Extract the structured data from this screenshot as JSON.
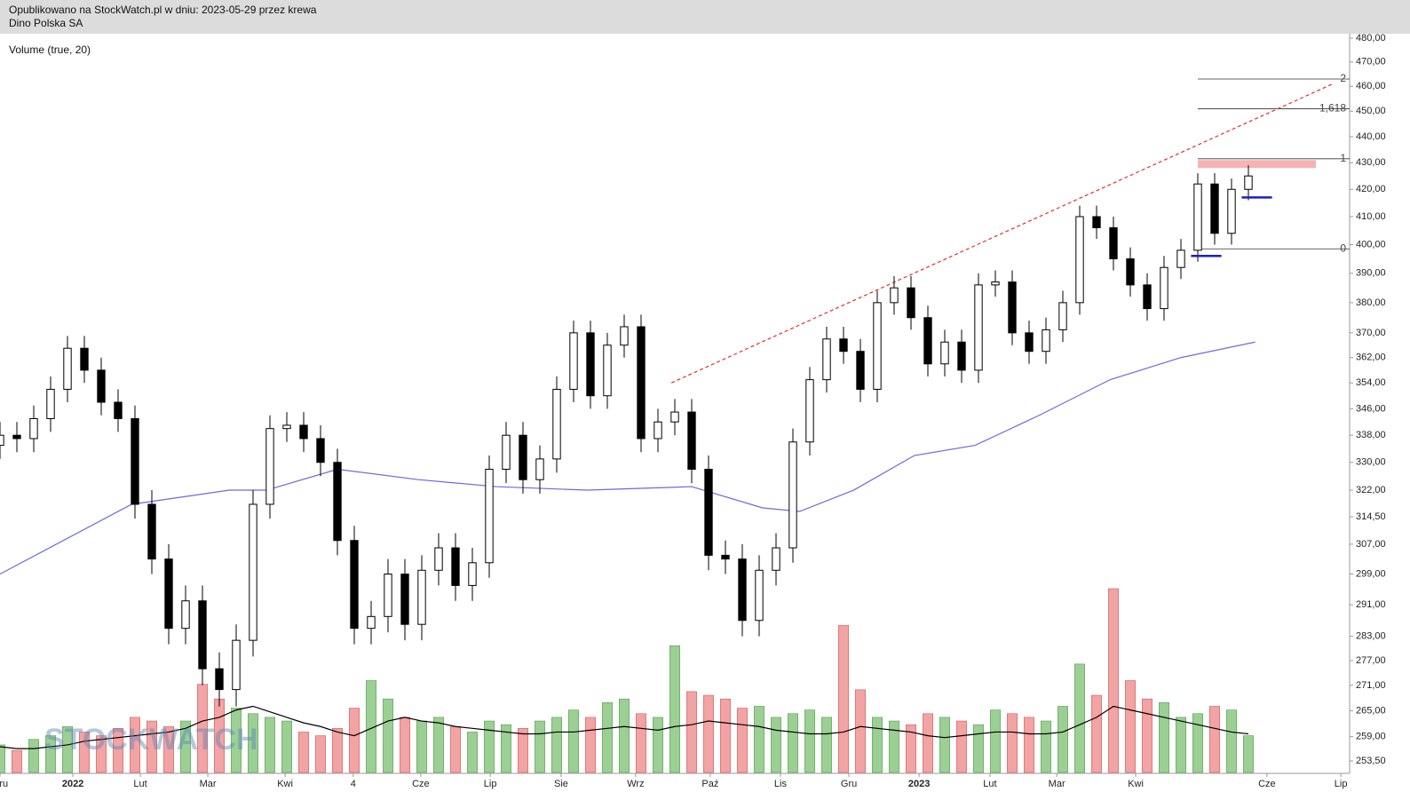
{
  "chart_data": {
    "type": "candlestick",
    "published": "Opublikowano na StockWatch.pl w dniu: 2023-05-29 przez krewa",
    "title": "Dino Polska SA",
    "indicator_label": "Volume (true, 20)",
    "watermark": "STOCKWATCH",
    "log": true,
    "up_color": "#ffffff",
    "down_color": "#000000",
    "x": [
      0,
      5,
      10,
      15,
      20,
      25,
      30,
      35,
      40,
      45,
      50,
      55,
      60,
      65,
      70,
      75,
      80,
      85,
      90,
      95,
      100,
      105,
      110,
      115,
      120,
      125,
      130,
      135,
      140,
      145,
      150,
      155,
      160,
      165,
      170,
      175,
      180,
      185,
      190,
      195,
      200,
      205,
      210,
      215,
      220,
      225,
      230,
      235,
      240,
      245,
      250,
      255,
      260,
      265,
      270,
      275,
      280,
      285,
      290,
      295,
      300,
      305,
      310,
      315,
      320,
      325,
      330,
      335,
      340,
      345,
      350,
      355,
      360,
      365,
      370
    ],
    "open": [
      335,
      338,
      337,
      343,
      352,
      365,
      358,
      348,
      343,
      318,
      303,
      285,
      292,
      275,
      270,
      282,
      318,
      340,
      341,
      337,
      330,
      308,
      285,
      288,
      299,
      286,
      300,
      306,
      296,
      302,
      328,
      338,
      325,
      331,
      352,
      370,
      350,
      366,
      372,
      337,
      342,
      345,
      328,
      304,
      303,
      287,
      300,
      306,
      336,
      355,
      368,
      364,
      352,
      380,
      385,
      375,
      360,
      367,
      358,
      386,
      387,
      370,
      364,
      371,
      380,
      410,
      406,
      395,
      386,
      378,
      392,
      398,
      422,
      404,
      420
    ],
    "high": [
      342,
      342,
      347,
      356,
      369,
      369,
      362,
      352,
      347,
      322,
      307,
      296,
      296,
      279,
      286,
      322,
      344,
      345,
      345,
      341,
      334,
      312,
      292,
      303,
      303,
      304,
      310,
      310,
      306,
      332,
      342,
      342,
      335,
      356,
      374,
      374,
      370,
      376,
      376,
      346,
      349,
      349,
      332,
      308,
      307,
      304,
      310,
      340,
      359,
      372,
      372,
      368,
      384,
      389,
      389,
      379,
      371,
      371,
      390,
      391,
      391,
      374,
      375,
      384,
      414,
      414,
      410,
      399,
      390,
      396,
      402,
      426,
      426,
      424,
      429
    ],
    "low": [
      331,
      333,
      333,
      339,
      348,
      354,
      344,
      339,
      314,
      299,
      281,
      281,
      271,
      266,
      266,
      278,
      314,
      336,
      333,
      326,
      304,
      281,
      281,
      284,
      282,
      282,
      296,
      292,
      292,
      298,
      324,
      321,
      321,
      327,
      348,
      346,
      346,
      362,
      333,
      333,
      338,
      324,
      300,
      299,
      283,
      283,
      296,
      302,
      332,
      351,
      360,
      348,
      348,
      376,
      371,
      356,
      356,
      354,
      354,
      382,
      366,
      360,
      360,
      367,
      376,
      402,
      391,
      382,
      374,
      374,
      388,
      394,
      400,
      400,
      416
    ],
    "close": [
      338,
      337,
      343,
      352,
      365,
      358,
      348,
      343,
      318,
      303,
      285,
      292,
      275,
      270,
      282,
      318,
      340,
      341,
      337,
      330,
      308,
      285,
      288,
      299,
      286,
      300,
      306,
      296,
      302,
      328,
      338,
      325,
      331,
      352,
      370,
      350,
      366,
      372,
      337,
      342,
      345,
      328,
      304,
      303,
      287,
      300,
      306,
      336,
      355,
      368,
      364,
      352,
      380,
      385,
      375,
      360,
      367,
      358,
      386,
      387,
      370,
      364,
      371,
      380,
      410,
      406,
      395,
      386,
      378,
      392,
      398,
      422,
      404,
      420,
      425
    ],
    "xlim": [
      0,
      400
    ],
    "xticks": [
      {
        "value": 0,
        "label": "Gru"
      },
      {
        "value": 21.6,
        "label": "2022"
      },
      {
        "value": 41.6,
        "label": "Lut"
      },
      {
        "value": 61.6,
        "label": "Mar"
      },
      {
        "value": 84.5,
        "label": "Kwi"
      },
      {
        "value": 104.7,
        "label": "4"
      },
      {
        "value": 124.7,
        "label": "Cze"
      },
      {
        "value": 145.3,
        "label": "Lip"
      },
      {
        "value": 166.3,
        "label": "Sie"
      },
      {
        "value": 188.4,
        "label": "Wrz"
      },
      {
        "value": 210.5,
        "label": "Paź"
      },
      {
        "value": 231.3,
        "label": "Lis"
      },
      {
        "value": 251.6,
        "label": "Gru"
      },
      {
        "value": 272.4,
        "label": "2023"
      },
      {
        "value": 293.4,
        "label": "Lut"
      },
      {
        "value": 313.2,
        "label": "Mar"
      },
      {
        "value": 336.6,
        "label": "Kwi"
      },
      {
        "value": 375.5,
        "label": "Cze"
      },
      {
        "value": 397.4,
        "label": "Lip"
      }
    ],
    "ylim": [
      253.5,
      480
    ],
    "yticks": [
      {
        "value": 480,
        "label": "480,00"
      },
      {
        "value": 470,
        "label": "470,00"
      },
      {
        "value": 460,
        "label": "460,00"
      },
      {
        "value": 450,
        "label": "450,00"
      },
      {
        "value": 440,
        "label": "440,00"
      },
      {
        "value": 430,
        "label": "430,00"
      },
      {
        "value": 420,
        "label": "420,00"
      },
      {
        "value": 410,
        "label": "410,00"
      },
      {
        "value": 400,
        "label": "400,00"
      },
      {
        "value": 390,
        "label": "390,00"
      },
      {
        "value": 380,
        "label": "380,00"
      },
      {
        "value": 370,
        "label": "370,00"
      },
      {
        "value": 362,
        "label": "362,00"
      },
      {
        "value": 354,
        "label": "354,00"
      },
      {
        "value": 346,
        "label": "346,00"
      },
      {
        "value": 338,
        "label": "338,00"
      },
      {
        "value": 330,
        "label": "330,00"
      },
      {
        "value": 322,
        "label": "322,00"
      },
      {
        "value": 314.5,
        "label": "314,50"
      },
      {
        "value": 307,
        "label": "307,00"
      },
      {
        "value": 299,
        "label": "299,00"
      },
      {
        "value": 291,
        "label": "291,00"
      },
      {
        "value": 283,
        "label": "283,00"
      },
      {
        "value": 277,
        "label": "277,00"
      },
      {
        "value": 271,
        "label": "271,00"
      },
      {
        "value": 265,
        "label": "265,00"
      },
      {
        "value": 259,
        "label": "259,00"
      },
      {
        "value": 253.5,
        "label": "253,50"
      }
    ],
    "moving_average": {
      "color": "#6a6adf",
      "x": [
        0,
        39,
        68,
        79,
        100,
        124,
        147,
        174,
        205,
        226,
        237,
        253,
        271,
        289,
        308,
        329,
        350,
        372
      ],
      "values": [
        299,
        318,
        322,
        322,
        328,
        325,
        323,
        322,
        323,
        317,
        316,
        322,
        332,
        335,
        344,
        355,
        362,
        367
      ]
    },
    "volume": {
      "up_color": "#9ccf94",
      "down_color": "#f2a3a3",
      "ylim": [
        0,
        100
      ],
      "values": [
        15,
        12,
        18,
        20,
        25,
        22,
        20,
        24,
        30,
        28,
        25,
        28,
        48,
        40,
        35,
        32,
        30,
        28,
        22,
        20,
        24,
        35,
        50,
        40,
        30,
        28,
        30,
        25,
        22,
        28,
        26,
        24,
        28,
        30,
        34,
        30,
        38,
        40,
        32,
        30,
        69,
        44,
        42,
        40,
        35,
        36,
        30,
        32,
        34,
        30,
        80,
        45,
        30,
        28,
        26,
        32,
        30,
        28,
        26,
        34,
        32,
        30,
        28,
        36,
        59,
        42,
        100,
        50,
        40,
        38,
        30,
        32,
        36,
        34,
        20
      ],
      "ma_color": "#000000",
      "ma": [
        14,
        13,
        13,
        14,
        15,
        17,
        18,
        19,
        20,
        21,
        22,
        24,
        28,
        30,
        34,
        36,
        33,
        30,
        27,
        25,
        22,
        20,
        24,
        28,
        30,
        28,
        27,
        25,
        24,
        23,
        22,
        21,
        21,
        22,
        22,
        23,
        24,
        25,
        24,
        23,
        25,
        26,
        28,
        27,
        26,
        25,
        23,
        22,
        21,
        21,
        22,
        25,
        24,
        23,
        22,
        20,
        19,
        20,
        21,
        22,
        22,
        21,
        21,
        22,
        26,
        30,
        36,
        34,
        32,
        30,
        28,
        26,
        24,
        22,
        21
      ]
    },
    "fib": {
      "x": [
        355,
        400
      ],
      "color": "#333333",
      "levels": [
        {
          "value": 463,
          "label": "2"
        },
        {
          "value": 451,
          "label": "1,618"
        },
        {
          "value": 431.5,
          "label": "1"
        },
        {
          "value": 398.5,
          "label": "0"
        }
      ]
    },
    "trendline": {
      "x": [
        199,
        395
      ],
      "y": [
        354,
        461
      ],
      "color": "#e03030"
    },
    "zone": {
      "x": [
        355,
        390
      ],
      "y": [
        428,
        431
      ],
      "color": "#f6b3b3"
    },
    "supports": [
      {
        "x": [
          353,
          362
        ],
        "y": 396,
        "color": "#1c1ccf"
      },
      {
        "x": [
          368,
          377
        ],
        "y": 417,
        "color": "#1c1ccf"
      }
    ]
  }
}
